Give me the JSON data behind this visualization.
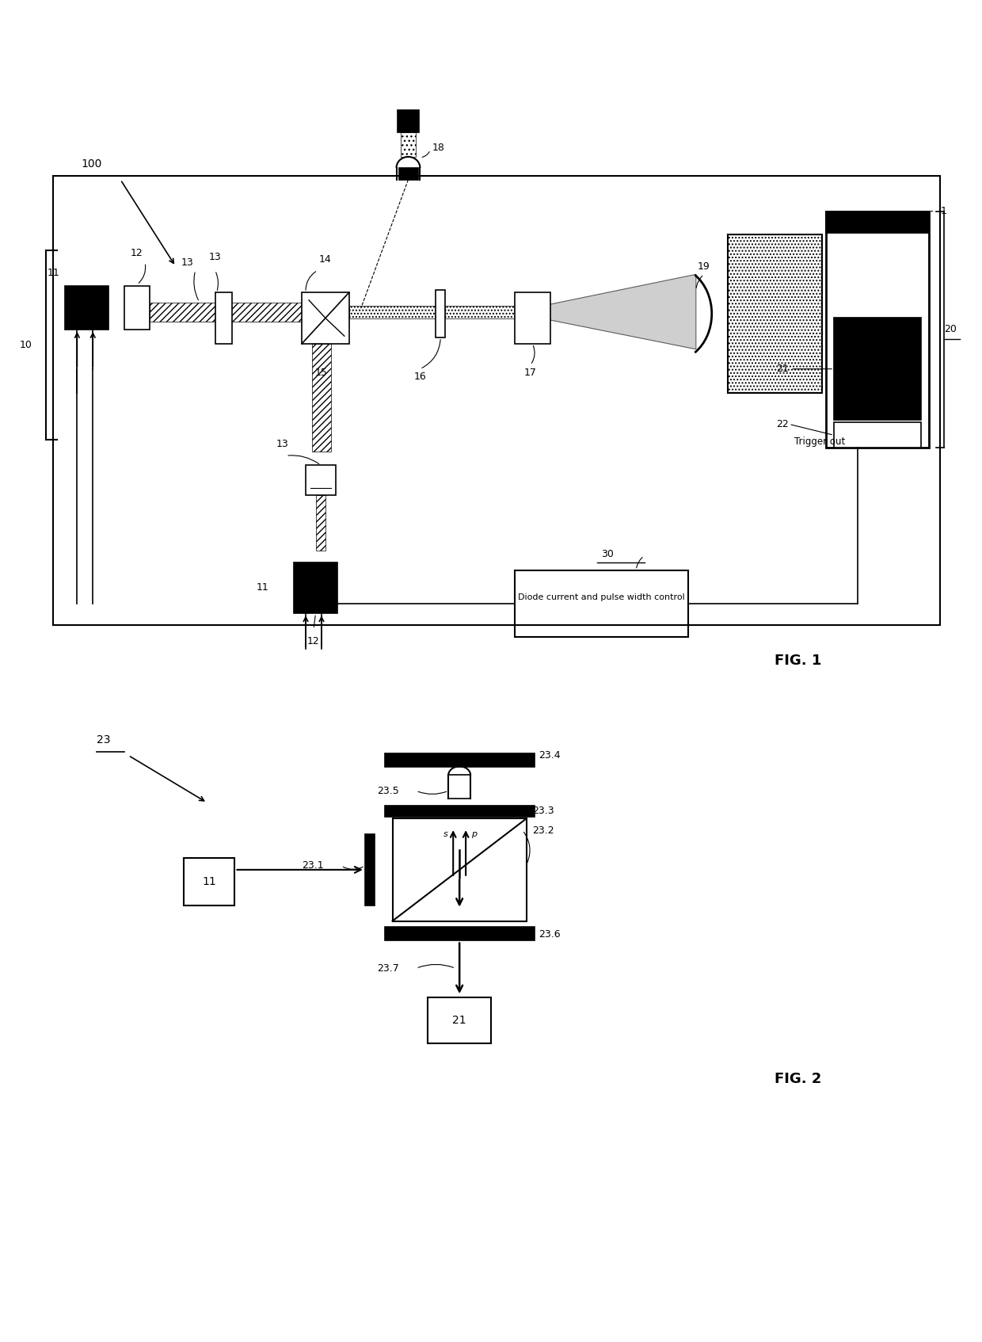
{
  "fig_width": 12.4,
  "fig_height": 16.94,
  "bg_color": "#ffffff",
  "line_color": "#000000",
  "fig1_label": "FIG. 1",
  "fig2_label": "FIG. 2",
  "label_100": "100",
  "label_10": "10",
  "label_18": "18",
  "label_11a": "11",
  "label_11b": "11",
  "label_12a": "12",
  "label_12b": "12",
  "label_13a": "13",
  "label_13b": "13",
  "label_13c": "13",
  "label_14": "14",
  "label_15": "15",
  "label_16": "16",
  "label_17": "17",
  "label_19": "19",
  "label_1": "1",
  "label_20": "20",
  "label_21": "21",
  "label_22": "22",
  "label_trigger": "Trigger out",
  "label_30": "30",
  "label_diode": "Diode current and pulse width control",
  "label_23": "23",
  "label_231": "23.1",
  "label_232": "23.2",
  "label_233": "23.3",
  "label_234": "23.4",
  "label_235": "23.5",
  "label_236": "23.6",
  "label_237": "23.7",
  "label_11_fig2": "11",
  "label_21_fig2": "21"
}
